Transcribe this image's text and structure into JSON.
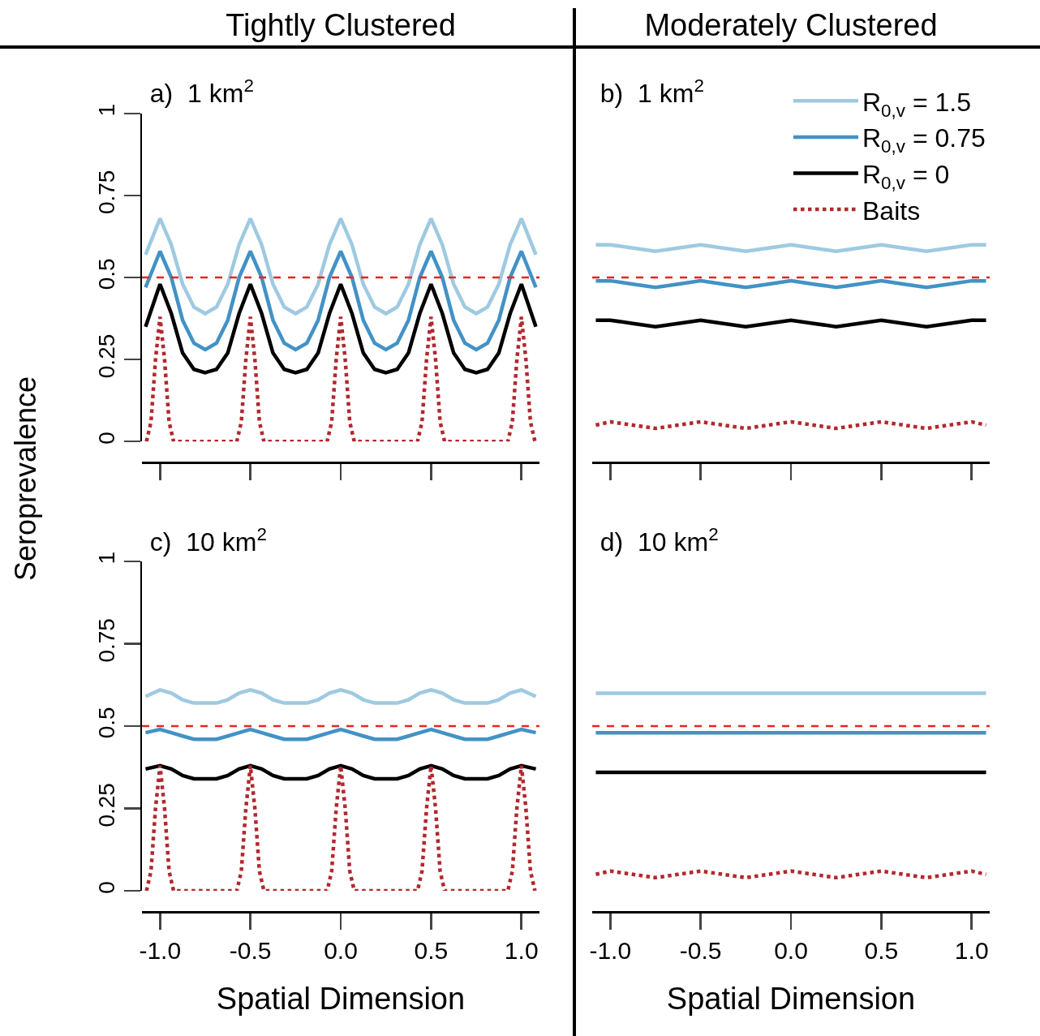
{
  "chart_data": [
    {
      "type": "line",
      "title": "a)  1 km$^{2}$",
      "ylabel": "Seroprevalence",
      "annotations": [
        "Tightly Clustered"
      ],
      "tick_labels": "y",
      "x": [
        -1.08,
        -1,
        -0.9375,
        -0.875,
        -0.8125,
        -0.75,
        -0.6875,
        -0.625,
        -0.5625,
        -0.5,
        -0.4375,
        -0.375,
        -0.3125,
        -0.25,
        -0.1875,
        -0.125,
        -0.0625,
        0,
        0.0625,
        0.125,
        0.1875,
        0.25,
        0.3125,
        0.375,
        0.4375,
        0.5,
        0.5625,
        0.625,
        0.6875,
        0.75,
        0.8125,
        0.875,
        0.9375,
        1,
        1.08
      ],
      "xlim": [
        -1.1,
        1.1
      ],
      "xticks": [
        {
          "value": -1,
          "label": null
        },
        {
          "value": -0.5,
          "label": null
        },
        {
          "value": 0,
          "label": null
        },
        {
          "value": 0.5,
          "label": null
        },
        {
          "value": 1,
          "label": null
        }
      ],
      "ylim": [
        0,
        1
      ],
      "yticks": [
        0,
        0.25,
        0.5,
        0.75,
        1
      ],
      "series": [
        {
          "color": "#9ecae1",
          "values": [
            0.57,
            0.68,
            0.6,
            0.48,
            0.41,
            0.39,
            0.41,
            0.48,
            0.6,
            0.68,
            0.6,
            0.48,
            0.41,
            0.39,
            0.41,
            0.48,
            0.6,
            0.68,
            0.6,
            0.48,
            0.41,
            0.39,
            0.41,
            0.48,
            0.6,
            0.68,
            0.6,
            0.48,
            0.41,
            0.39,
            0.41,
            0.48,
            0.6,
            0.68,
            0.57
          ]
        },
        {
          "color": "#4292c6",
          "values": [
            0.47,
            0.58,
            0.5,
            0.37,
            0.3,
            0.28,
            0.3,
            0.37,
            0.5,
            0.58,
            0.5,
            0.37,
            0.3,
            0.28,
            0.3,
            0.37,
            0.5,
            0.58,
            0.5,
            0.37,
            0.3,
            0.28,
            0.3,
            0.37,
            0.5,
            0.58,
            0.5,
            0.37,
            0.3,
            0.28,
            0.3,
            0.37,
            0.5,
            0.58,
            0.47
          ]
        },
        {
          "color": "#000000",
          "values": [
            0.35,
            0.48,
            0.39,
            0.27,
            0.22,
            0.21,
            0.22,
            0.27,
            0.39,
            0.48,
            0.39,
            0.27,
            0.22,
            0.21,
            0.22,
            0.27,
            0.39,
            0.48,
            0.39,
            0.27,
            0.22,
            0.21,
            0.22,
            0.27,
            0.39,
            0.48,
            0.39,
            0.27,
            0.22,
            0.21,
            0.22,
            0.27,
            0.39,
            0.48,
            0.35
          ]
        },
        {
          "color": "#b2282e",
          "line_style": "dotted",
          "x": [
            -1.075,
            -1.05,
            -1.025,
            -1,
            -0.975,
            -0.95,
            -0.925,
            -0.575,
            -0.55,
            -0.525,
            -0.5,
            -0.475,
            -0.45,
            -0.425,
            -0.075,
            -0.05,
            -0.025,
            0,
            0.025,
            0.05,
            0.075,
            0.425,
            0.45,
            0.475,
            0.5,
            0.525,
            0.55,
            0.575,
            0.925,
            0.95,
            0.975,
            1,
            1.025,
            1.05,
            1.075
          ],
          "values": [
            0,
            0.06,
            0.25,
            0.38,
            0.25,
            0.06,
            0,
            0,
            0.06,
            0.25,
            0.38,
            0.25,
            0.06,
            0,
            0,
            0.06,
            0.25,
            0.38,
            0.25,
            0.06,
            0,
            0,
            0.06,
            0.25,
            0.38,
            0.25,
            0.06,
            0,
            0,
            0.06,
            0.25,
            0.38,
            0.25,
            0.06,
            0
          ]
        }
      ],
      "ref_lines": [
        {
          "axis": "y",
          "value": 0.5,
          "color": "#e8251f",
          "line_style": "dashed"
        }
      ]
    },
    {
      "type": "line",
      "title": "b)  1 km$^{2}$",
      "annotations": [
        "Moderately Clustered"
      ],
      "tick_labels": false,
      "legend": "top right",
      "x": [
        -1.08,
        -1,
        -0.875,
        -0.75,
        -0.625,
        -0.5,
        -0.375,
        -0.25,
        -0.125,
        0,
        0.125,
        0.25,
        0.375,
        0.5,
        0.625,
        0.75,
        0.875,
        1,
        1.08
      ],
      "xlim": [
        -1.1,
        1.1
      ],
      "xticks": [
        {
          "value": -1,
          "label": null
        },
        {
          "value": -0.5,
          "label": null
        },
        {
          "value": 0,
          "label": null
        },
        {
          "value": 0.5,
          "label": null
        },
        {
          "value": 1,
          "label": null
        }
      ],
      "ylim": [
        0,
        1
      ],
      "yticks": [
        0,
        0.25,
        0.5,
        0.75,
        1
      ],
      "series": [
        {
          "name": "R$_{0,v}$ = 1.5",
          "color": "#9ecae1",
          "values": [
            0.6,
            0.6,
            0.59,
            0.58,
            0.59,
            0.6,
            0.59,
            0.58,
            0.59,
            0.6,
            0.59,
            0.58,
            0.59,
            0.6,
            0.59,
            0.58,
            0.59,
            0.6,
            0.6
          ]
        },
        {
          "name": "R$_{0,v}$ = 0.75",
          "color": "#4292c6",
          "values": [
            0.49,
            0.49,
            0.48,
            0.47,
            0.48,
            0.49,
            0.48,
            0.47,
            0.48,
            0.49,
            0.48,
            0.47,
            0.48,
            0.49,
            0.48,
            0.47,
            0.48,
            0.49,
            0.49
          ]
        },
        {
          "name": "R$_{0,v}$ = 0",
          "color": "#000000",
          "values": [
            0.37,
            0.37,
            0.36,
            0.35,
            0.36,
            0.37,
            0.36,
            0.35,
            0.36,
            0.37,
            0.36,
            0.35,
            0.36,
            0.37,
            0.36,
            0.35,
            0.36,
            0.37,
            0.37
          ]
        },
        {
          "name": "Baits",
          "color": "#b2282e",
          "line_style": "dotted",
          "values": [
            0.05,
            0.06,
            0.05,
            0.04,
            0.05,
            0.06,
            0.05,
            0.04,
            0.05,
            0.06,
            0.05,
            0.04,
            0.05,
            0.06,
            0.05,
            0.04,
            0.05,
            0.06,
            0.05
          ]
        }
      ],
      "ref_lines": [
        {
          "axis": "y",
          "value": 0.5,
          "color": "#e8251f",
          "line_style": "dashed"
        }
      ]
    },
    {
      "type": "line",
      "title": "c)  10 km$^{2}$",
      "xlabel": "Spatial Dimension",
      "x": [
        -1.08,
        -1,
        -0.9375,
        -0.875,
        -0.8125,
        -0.75,
        -0.6875,
        -0.625,
        -0.5625,
        -0.5,
        -0.4375,
        -0.375,
        -0.3125,
        -0.25,
        -0.1875,
        -0.125,
        -0.0625,
        0,
        0.0625,
        0.125,
        0.1875,
        0.25,
        0.3125,
        0.375,
        0.4375,
        0.5,
        0.5625,
        0.625,
        0.6875,
        0.75,
        0.8125,
        0.875,
        0.9375,
        1,
        1.08
      ],
      "xlim": [
        -1.1,
        1.1
      ],
      "xticks": [
        {
          "value": -1,
          "label": "-1.0"
        },
        {
          "value": -0.5,
          "label": "-0.5"
        },
        {
          "value": 0,
          "label": "0.0"
        },
        {
          "value": 0.5,
          "label": "0.5"
        },
        {
          "value": 1,
          "label": "1.0"
        }
      ],
      "ylim": [
        0,
        1
      ],
      "yticks": [
        0,
        0.25,
        0.5,
        0.75,
        1
      ],
      "series": [
        {
          "color": "#9ecae1",
          "values": [
            0.59,
            0.61,
            0.6,
            0.58,
            0.57,
            0.57,
            0.57,
            0.58,
            0.6,
            0.61,
            0.6,
            0.58,
            0.57,
            0.57,
            0.57,
            0.58,
            0.6,
            0.61,
            0.6,
            0.58,
            0.57,
            0.57,
            0.57,
            0.58,
            0.6,
            0.61,
            0.6,
            0.58,
            0.57,
            0.57,
            0.57,
            0.58,
            0.6,
            0.61,
            0.59
          ]
        },
        {
          "color": "#4292c6",
          "values": [
            0.48,
            0.49,
            0.48,
            0.47,
            0.46,
            0.46,
            0.46,
            0.47,
            0.48,
            0.49,
            0.48,
            0.47,
            0.46,
            0.46,
            0.46,
            0.47,
            0.48,
            0.49,
            0.48,
            0.47,
            0.46,
            0.46,
            0.46,
            0.47,
            0.48,
            0.49,
            0.48,
            0.47,
            0.46,
            0.46,
            0.46,
            0.47,
            0.48,
            0.49,
            0.48
          ]
        },
        {
          "color": "#000000",
          "values": [
            0.37,
            0.38,
            0.37,
            0.35,
            0.34,
            0.34,
            0.34,
            0.35,
            0.37,
            0.38,
            0.37,
            0.35,
            0.34,
            0.34,
            0.34,
            0.35,
            0.37,
            0.38,
            0.37,
            0.35,
            0.34,
            0.34,
            0.34,
            0.35,
            0.37,
            0.38,
            0.37,
            0.35,
            0.34,
            0.34,
            0.34,
            0.35,
            0.37,
            0.38,
            0.37
          ]
        },
        {
          "color": "#b2282e",
          "line_style": "dotted",
          "x": [
            -1.075,
            -1.05,
            -1.025,
            -1,
            -0.975,
            -0.95,
            -0.925,
            -0.575,
            -0.55,
            -0.525,
            -0.5,
            -0.475,
            -0.45,
            -0.425,
            -0.075,
            -0.05,
            -0.025,
            0,
            0.025,
            0.05,
            0.075,
            0.425,
            0.45,
            0.475,
            0.5,
            0.525,
            0.55,
            0.575,
            0.925,
            0.95,
            0.975,
            1,
            1.025,
            1.05,
            1.075
          ],
          "values": [
            0,
            0.06,
            0.25,
            0.38,
            0.25,
            0.06,
            0,
            0,
            0.06,
            0.25,
            0.38,
            0.25,
            0.06,
            0,
            0,
            0.06,
            0.25,
            0.38,
            0.25,
            0.06,
            0,
            0,
            0.06,
            0.25,
            0.38,
            0.25,
            0.06,
            0,
            0,
            0.06,
            0.25,
            0.38,
            0.25,
            0.06,
            0
          ]
        }
      ],
      "ref_lines": [
        {
          "axis": "y",
          "value": 0.5,
          "color": "#e8251f",
          "line_style": "dashed"
        }
      ]
    },
    {
      "type": "line",
      "title": "d)  10 km$^{2}$",
      "xlabel": "Spatial Dimension",
      "tick_labels": "x",
      "x": [
        -1.08,
        -1,
        -0.875,
        -0.75,
        -0.625,
        -0.5,
        -0.375,
        -0.25,
        -0.125,
        0,
        0.125,
        0.25,
        0.375,
        0.5,
        0.625,
        0.75,
        0.875,
        1,
        1.08
      ],
      "xlim": [
        -1.1,
        1.1
      ],
      "xticks": [
        {
          "value": -1,
          "label": "-1.0"
        },
        {
          "value": -0.5,
          "label": "-0.5"
        },
        {
          "value": 0,
          "label": "0.0"
        },
        {
          "value": 0.5,
          "label": "0.5"
        },
        {
          "value": 1,
          "label": "1.0"
        }
      ],
      "ylim": [
        0,
        1
      ],
      "yticks": [
        0,
        0.25,
        0.5,
        0.75,
        1
      ],
      "series": [
        {
          "color": "#9ecae1",
          "values": [
            0.6,
            0.6,
            0.6,
            0.6,
            0.6,
            0.6,
            0.6,
            0.6,
            0.6,
            0.6,
            0.6,
            0.6,
            0.6,
            0.6,
            0.6,
            0.6,
            0.6,
            0.6,
            0.6
          ]
        },
        {
          "color": "#4292c6",
          "values": [
            0.48,
            0.48,
            0.48,
            0.48,
            0.48,
            0.48,
            0.48,
            0.48,
            0.48,
            0.48,
            0.48,
            0.48,
            0.48,
            0.48,
            0.48,
            0.48,
            0.48,
            0.48,
            0.48
          ]
        },
        {
          "color": "#000000",
          "values": [
            0.36,
            0.36,
            0.36,
            0.36,
            0.36,
            0.36,
            0.36,
            0.36,
            0.36,
            0.36,
            0.36,
            0.36,
            0.36,
            0.36,
            0.36,
            0.36,
            0.36,
            0.36,
            0.36
          ]
        },
        {
          "color": "#b2282e",
          "line_style": "dotted",
          "values": [
            0.05,
            0.06,
            0.05,
            0.04,
            0.05,
            0.06,
            0.05,
            0.04,
            0.05,
            0.06,
            0.05,
            0.04,
            0.05,
            0.06,
            0.05,
            0.04,
            0.05,
            0.06,
            0.05
          ]
        }
      ],
      "ref_lines": [
        {
          "axis": "y",
          "value": 0.5,
          "color": "#e8251f",
          "line_style": "dashed"
        }
      ]
    }
  ]
}
